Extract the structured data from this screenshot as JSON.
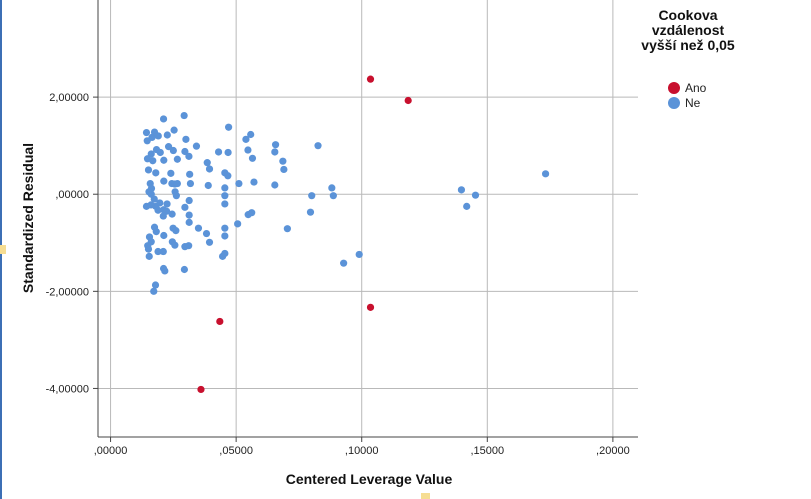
{
  "chart_data": {
    "type": "scatter",
    "xlabel": "Centered Leverage Value",
    "ylabel": "Standardized Residual",
    "xlim": [
      -0.005,
      0.21
    ],
    "ylim": [
      -5.0,
      4.0
    ],
    "x_ticks": [
      0.0,
      0.05,
      0.1,
      0.15,
      0.2
    ],
    "x_tick_labels": [
      ",00000",
      ",05000",
      ",10000",
      ",15000",
      ",20000"
    ],
    "y_ticks": [
      2.0,
      0.0,
      -2.0,
      -4.0
    ],
    "y_tick_labels": [
      "2,00000",
      ",00000",
      "-2,00000",
      "-4,00000"
    ],
    "grid": true,
    "legend": {
      "title": "Cookova vzdálenost vyšší než 0,05",
      "placement": "right",
      "entries": [
        {
          "label": "Ano",
          "color": "#c8102e"
        },
        {
          "label": "Ne",
          "color": "#5b93d8"
        }
      ]
    },
    "series": [
      {
        "name": "Ano",
        "color": "#c8102e",
        "points": [
          [
            0.1035,
            2.37
          ],
          [
            0.1185,
            1.93
          ],
          [
            0.0435,
            -2.62
          ],
          [
            0.1035,
            -2.33
          ],
          [
            0.036,
            -4.02
          ]
        ]
      },
      {
        "name": "Ne",
        "color": "#5b93d8",
        "points": [
          [
            0.0143,
            1.27
          ],
          [
            0.0146,
            1.1
          ],
          [
            0.0165,
            1.17
          ],
          [
            0.0175,
            1.28
          ],
          [
            0.019,
            1.2
          ],
          [
            0.0211,
            1.55
          ],
          [
            0.0226,
            1.22
          ],
          [
            0.0253,
            1.32
          ],
          [
            0.0293,
            1.62
          ],
          [
            0.03,
            1.13
          ],
          [
            0.0342,
            0.99
          ],
          [
            0.047,
            1.38
          ],
          [
            0.0539,
            1.13
          ],
          [
            0.0558,
            1.23
          ],
          [
            0.0654,
            0.87
          ],
          [
            0.0657,
            1.02
          ],
          [
            0.0826,
            1.0
          ],
          [
            0.0147,
            0.73
          ],
          [
            0.0162,
            0.83
          ],
          [
            0.0168,
            0.69
          ],
          [
            0.0183,
            0.92
          ],
          [
            0.0198,
            0.86
          ],
          [
            0.0212,
            0.7
          ],
          [
            0.0231,
            0.98
          ],
          [
            0.025,
            0.9
          ],
          [
            0.0266,
            0.72
          ],
          [
            0.0296,
            0.88
          ],
          [
            0.0312,
            0.78
          ],
          [
            0.0385,
            0.65
          ],
          [
            0.0394,
            0.52
          ],
          [
            0.043,
            0.87
          ],
          [
            0.0455,
            0.44
          ],
          [
            0.0468,
            0.86
          ],
          [
            0.0547,
            0.91
          ],
          [
            0.0565,
            0.74
          ],
          [
            0.0686,
            0.68
          ],
          [
            0.069,
            0.51
          ],
          [
            0.0151,
            0.5
          ],
          [
            0.0158,
            0.22
          ],
          [
            0.0163,
            0.12
          ],
          [
            0.018,
            0.44
          ],
          [
            0.0212,
            0.27
          ],
          [
            0.024,
            0.43
          ],
          [
            0.0244,
            0.22
          ],
          [
            0.0256,
            0.21
          ],
          [
            0.0266,
            0.22
          ],
          [
            0.0315,
            0.41
          ],
          [
            0.0318,
            0.22
          ],
          [
            0.0389,
            0.18
          ],
          [
            0.0455,
            0.13
          ],
          [
            0.0467,
            0.38
          ],
          [
            0.0511,
            0.22
          ],
          [
            0.0571,
            0.25
          ],
          [
            0.0654,
            0.19
          ],
          [
            0.0881,
            0.13
          ],
          [
            0.1397,
            0.09
          ],
          [
            0.1732,
            0.42
          ],
          [
            0.0153,
            0.05
          ],
          [
            0.0162,
            0.0
          ],
          [
            0.0174,
            -0.1
          ],
          [
            0.018,
            -0.25
          ],
          [
            0.0196,
            -0.18
          ],
          [
            0.0211,
            -0.32
          ],
          [
            0.0225,
            -0.2
          ],
          [
            0.0257,
            0.05
          ],
          [
            0.0262,
            -0.03
          ],
          [
            0.0296,
            -0.27
          ],
          [
            0.0313,
            -0.13
          ],
          [
            0.0455,
            -0.03
          ],
          [
            0.0455,
            -0.2
          ],
          [
            0.0801,
            -0.03
          ],
          [
            0.0887,
            -0.03
          ],
          [
            0.1453,
            -0.02
          ],
          [
            0.1418,
            -0.25
          ],
          [
            0.0143,
            -0.25
          ],
          [
            0.0161,
            -0.22
          ],
          [
            0.0189,
            -0.33
          ],
          [
            0.021,
            -0.45
          ],
          [
            0.0223,
            -0.35
          ],
          [
            0.0245,
            -0.41
          ],
          [
            0.0313,
            -0.43
          ],
          [
            0.0548,
            -0.42
          ],
          [
            0.0562,
            -0.38
          ],
          [
            0.0796,
            -0.37
          ],
          [
            0.0155,
            -0.88
          ],
          [
            0.0162,
            -0.98
          ],
          [
            0.0175,
            -0.68
          ],
          [
            0.0182,
            -0.77
          ],
          [
            0.0212,
            -0.85
          ],
          [
            0.0249,
            -0.7
          ],
          [
            0.026,
            -0.75
          ],
          [
            0.0313,
            -0.58
          ],
          [
            0.035,
            -0.7
          ],
          [
            0.0382,
            -0.81
          ],
          [
            0.0394,
            -0.99
          ],
          [
            0.0455,
            -0.7
          ],
          [
            0.0455,
            -0.86
          ],
          [
            0.0506,
            -0.61
          ],
          [
            0.0704,
            -0.71
          ],
          [
            0.0148,
            -1.06
          ],
          [
            0.0151,
            -1.13
          ],
          [
            0.0154,
            -1.28
          ],
          [
            0.0189,
            -1.18
          ],
          [
            0.021,
            -1.18
          ],
          [
            0.0246,
            -0.98
          ],
          [
            0.0256,
            -1.05
          ],
          [
            0.0296,
            -1.08
          ],
          [
            0.0311,
            -1.06
          ],
          [
            0.0446,
            -1.28
          ],
          [
            0.0455,
            -1.22
          ],
          [
            0.099,
            -1.24
          ],
          [
            0.0211,
            -1.53
          ],
          [
            0.0216,
            -1.58
          ],
          [
            0.0294,
            -1.55
          ],
          [
            0.0928,
            -1.42
          ],
          [
            0.0179,
            -1.87
          ],
          [
            0.0172,
            -2.0
          ]
        ]
      }
    ]
  }
}
